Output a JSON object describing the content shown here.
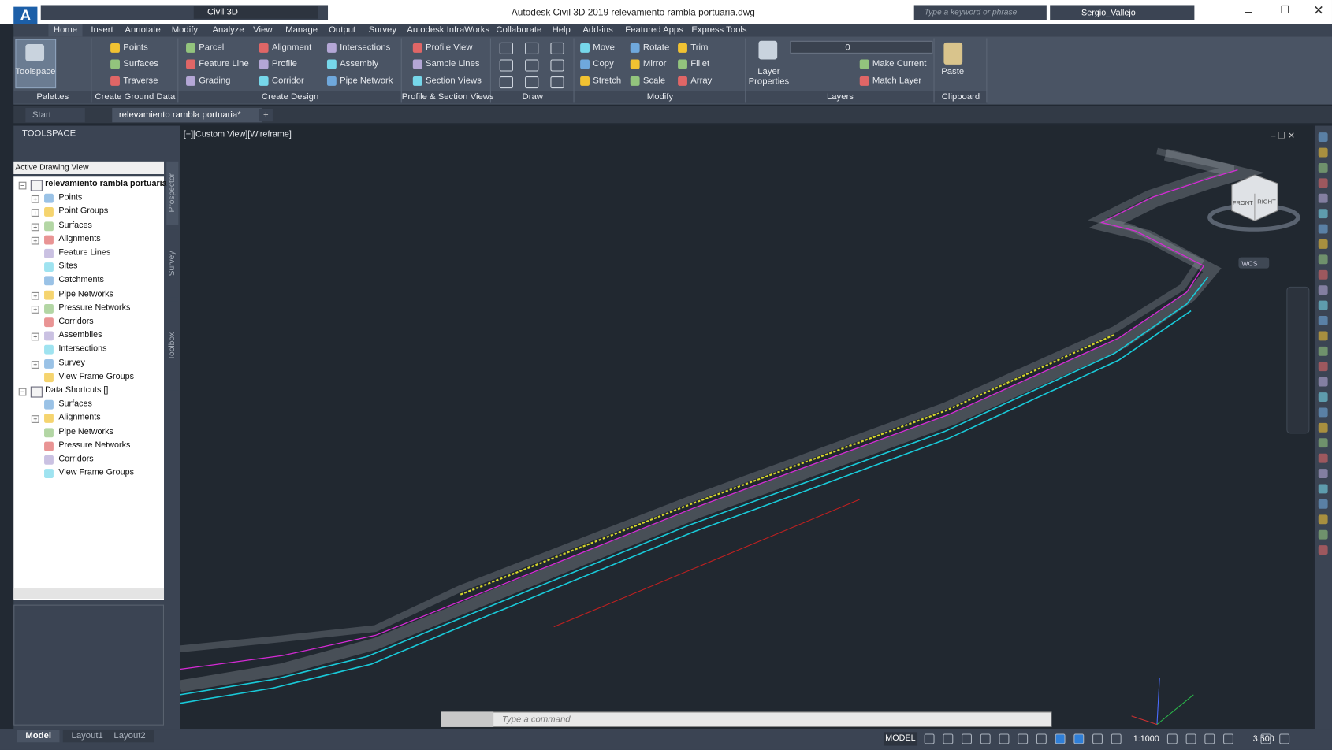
{
  "title_bar": {
    "workspace": "Civil 3D",
    "title": "Autodesk Civil 3D 2019    relevamiento rambla portuaria.dwg",
    "search_placeholder": "Type a keyword or phrase",
    "user": "Sergio_Vallejo"
  },
  "ribbon": {
    "tabs": [
      "Home",
      "Insert",
      "Annotate",
      "Modify",
      "Analyze",
      "View",
      "Manage",
      "Output",
      "Survey",
      "Autodesk InfraWorks",
      "Collaborate",
      "Help",
      "Add-ins",
      "Featured Apps",
      "Express Tools"
    ],
    "active_tab": 0,
    "panels": [
      {
        "label": "Palettes",
        "columns": [
          [
            "Toolspace"
          ]
        ]
      },
      {
        "label": "Create Ground Data",
        "columns": [
          [
            "Points",
            "Surfaces",
            "Traverse"
          ]
        ]
      },
      {
        "label": "Create Design",
        "columns": [
          [
            "Parcel",
            "Feature Line",
            "Grading"
          ],
          [
            "Alignment",
            "Profile",
            "Corridor"
          ],
          [
            "Intersections",
            "Assembly",
            "Pipe Network"
          ]
        ]
      },
      {
        "label": "Profile & Section Views",
        "columns": [
          [
            "Profile View",
            "Sample Lines",
            "Section Views"
          ]
        ]
      },
      {
        "label": "Draw",
        "columns": []
      },
      {
        "label": "Modify",
        "columns": [
          [
            "Move",
            "Copy",
            "Stretch"
          ],
          [
            "Rotate",
            "Mirror",
            "Scale"
          ],
          [
            "Trim",
            "Fillet",
            "Array"
          ]
        ]
      },
      {
        "label": "Layers",
        "columns": [
          [
            "Layer Properties"
          ],
          [
            "0",
            "Make Current",
            "Match Layer"
          ]
        ]
      },
      {
        "label": "Clipboard",
        "columns": [
          [
            "Paste"
          ]
        ]
      }
    ]
  },
  "document_tabs": [
    "Start",
    "relevamiento rambla portuaria*"
  ],
  "toolspace": {
    "title": "TOOLSPACE",
    "view": "Active Drawing View",
    "side_tabs": [
      "Prospector",
      "Survey",
      "Toolbox"
    ],
    "tree": [
      {
        "label": "relevamiento rambla portuaria",
        "children": [
          {
            "label": "Points",
            "expandable": true
          },
          {
            "label": "Point Groups",
            "expandable": true
          },
          {
            "label": "Surfaces",
            "expandable": true
          },
          {
            "label": "Alignments",
            "expandable": true
          },
          {
            "label": "Feature Lines",
            "expandable": false
          },
          {
            "label": "Sites",
            "expandable": false
          },
          {
            "label": "Catchments",
            "expandable": false
          },
          {
            "label": "Pipe Networks",
            "expandable": true
          },
          {
            "label": "Pressure Networks",
            "expandable": true
          },
          {
            "label": "Corridors",
            "expandable": false
          },
          {
            "label": "Assemblies",
            "expandable": true
          },
          {
            "label": "Intersections",
            "expandable": false
          },
          {
            "label": "Survey",
            "expandable": true
          },
          {
            "label": "View Frame Groups",
            "expandable": false
          }
        ]
      },
      {
        "label": "Data Shortcuts []",
        "children": [
          {
            "label": "Surfaces",
            "expandable": false
          },
          {
            "label": "Alignments",
            "expandable": true
          },
          {
            "label": "Pipe Networks",
            "expandable": false
          },
          {
            "label": "Pressure Networks",
            "expandable": false
          },
          {
            "label": "Corridors",
            "expandable": false
          },
          {
            "label": "View Frame Groups",
            "expandable": false
          }
        ]
      }
    ]
  },
  "viewport": {
    "label": "[−][Custom View][Wireframe]",
    "viewcube": {
      "front": "FRONT",
      "right": "RIGHT",
      "ucs": "WCS"
    }
  },
  "command_line": {
    "placeholder": "Type a command"
  },
  "layout_tabs": [
    "Model",
    "Layout1",
    "Layout2"
  ],
  "status_bar": {
    "space": "MODEL",
    "scale": "1:1000",
    "annotation": "3.500"
  }
}
